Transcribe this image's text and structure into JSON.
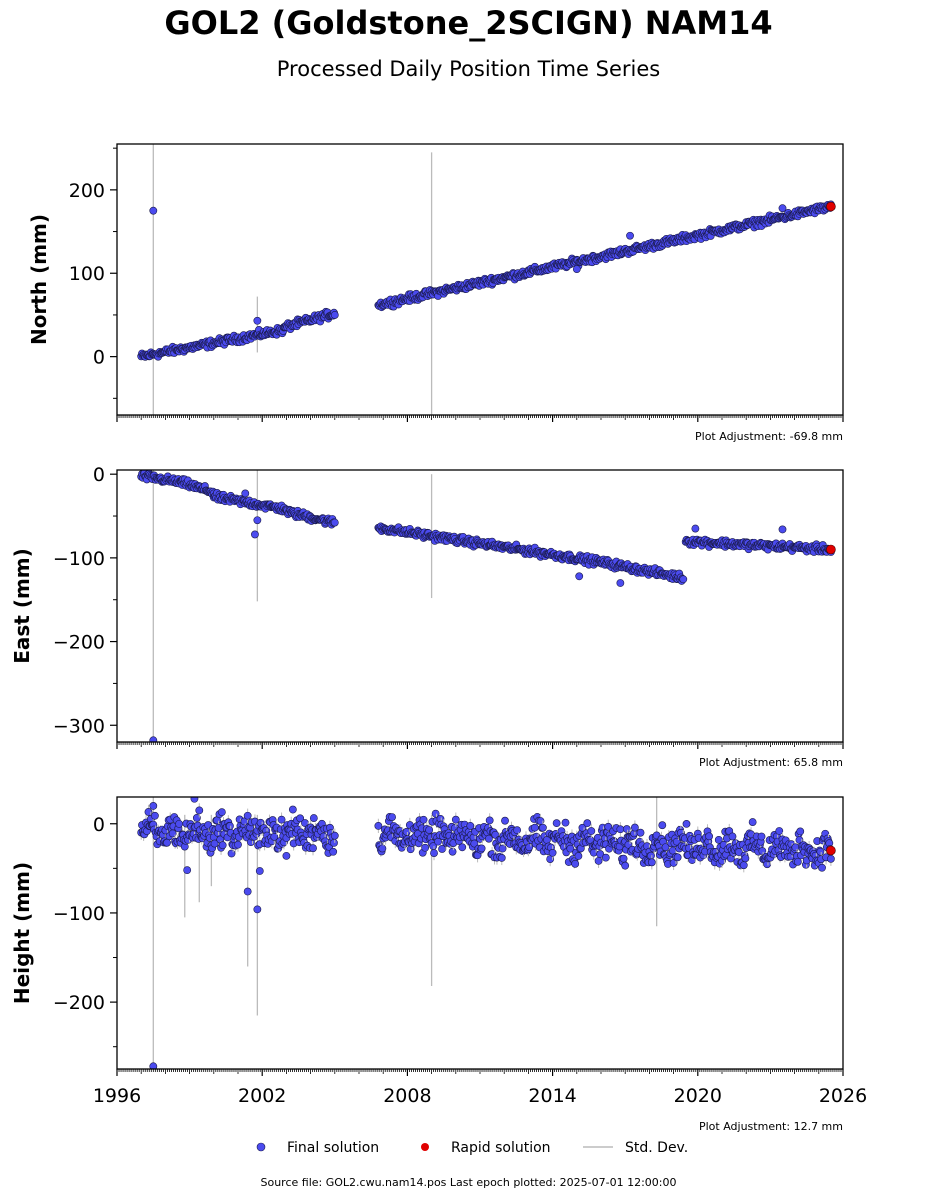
{
  "header": {
    "title": "GOL2 (Goldstone_2SCIGN) NAM14",
    "subtitle": "Processed Daily Position Time Series"
  },
  "footer": {
    "source": "Source file: GOL2.cwu.nam14.pos  Last epoch plotted: 2025-07-01 12:00:00"
  },
  "colors": {
    "final": "#4b4bef",
    "final_edge": "#1a1a4a",
    "rapid": "#e00000",
    "stddev": "#bbbbbb",
    "axis": "#000000"
  },
  "chart_data": [
    {
      "type": "scatter",
      "ylabel": "North (mm)",
      "xlim": [
        1996,
        2026
      ],
      "ylim": [
        -70,
        255
      ],
      "yticks": [
        0,
        100,
        200
      ],
      "plot_adjustment": "Plot Adjustment: -69.8 mm",
      "segments": [
        {
          "x0": 1997.0,
          "x1": 2002.9,
          "y0": 0,
          "y1": 32
        },
        {
          "x0": 2002.9,
          "x1": 2005.0,
          "y0": 35,
          "y1": 52
        },
        {
          "x0": 2006.8,
          "x1": 2025.5,
          "y0": 62,
          "y1": 180
        }
      ],
      "scatter_noise": 3,
      "outliers": [
        {
          "x": 1997.5,
          "y": 175
        },
        {
          "x": 2001.8,
          "y": 43
        },
        {
          "x": 2015.0,
          "y": 105
        },
        {
          "x": 2017.2,
          "y": 145
        },
        {
          "x": 2023.5,
          "y": 178
        }
      ],
      "stddev_bars": [
        {
          "x": 1997.5,
          "y0": -70,
          "y1": 255
        },
        {
          "x": 2001.8,
          "y0": 5,
          "y1": 72
        },
        {
          "x": 2009.0,
          "y0": -70,
          "y1": 245
        }
      ],
      "rapid": {
        "x": 2025.5,
        "y": 180
      }
    },
    {
      "type": "scatter",
      "ylabel": "East (mm)",
      "xlim": [
        1996,
        2026
      ],
      "ylim": [
        -320,
        5
      ],
      "yticks": [
        -300,
        -200,
        -100,
        0
      ],
      "plot_adjustment": "Plot Adjustment: 65.8 mm",
      "segments": [
        {
          "x0": 1997.0,
          "x1": 1998.7,
          "y0": -2,
          "y1": -10
        },
        {
          "x0": 1998.7,
          "x1": 2000.0,
          "y0": -10,
          "y1": -22
        },
        {
          "x0": 2000.0,
          "x1": 2003.0,
          "y0": -27,
          "y1": -42
        },
        {
          "x0": 2003.0,
          "x1": 2005.0,
          "y0": -45,
          "y1": -58
        },
        {
          "x0": 2006.8,
          "x1": 2016.0,
          "y0": -64,
          "y1": -105
        },
        {
          "x0": 2016.0,
          "x1": 2019.4,
          "y0": -105,
          "y1": -124
        },
        {
          "x0": 2019.5,
          "x1": 2025.5,
          "y0": -80,
          "y1": -90
        }
      ],
      "scatter_noise": 3,
      "outliers": [
        {
          "x": 1997.5,
          "y": -318
        },
        {
          "x": 2001.7,
          "y": -72
        },
        {
          "x": 2001.8,
          "y": -55
        },
        {
          "x": 2001.3,
          "y": -23
        },
        {
          "x": 2015.1,
          "y": -122
        },
        {
          "x": 2016.8,
          "y": -130
        },
        {
          "x": 2019.9,
          "y": -65
        },
        {
          "x": 2023.5,
          "y": -66
        }
      ],
      "stddev_bars": [
        {
          "x": 1997.5,
          "y0": -320,
          "y1": 5
        },
        {
          "x": 2001.8,
          "y0": -152,
          "y1": 5
        },
        {
          "x": 2009.0,
          "y0": -148,
          "y1": 0
        }
      ],
      "rapid": {
        "x": 2025.5,
        "y": -90
      }
    },
    {
      "type": "scatter",
      "ylabel": "Height (mm)",
      "xlim": [
        1996,
        2026
      ],
      "ylim": [
        -275,
        30
      ],
      "yticks": [
        -200,
        -100,
        0
      ],
      "xticks": [
        1996,
        2002,
        2008,
        2014,
        2020,
        2026
      ],
      "plot_adjustment": "Plot Adjustment: 12.7 mm",
      "segments": [
        {
          "x0": 1997.0,
          "x1": 2005.0,
          "y0": -10,
          "y1": -10
        },
        {
          "x0": 2006.8,
          "x1": 2025.5,
          "y0": -12,
          "y1": -30
        }
      ],
      "scatter_noise": 13,
      "outliers": [
        {
          "x": 1997.5,
          "y": 20
        },
        {
          "x": 1998.9,
          "y": -52
        },
        {
          "x": 1999.2,
          "y": 28
        },
        {
          "x": 2001.4,
          "y": -76
        },
        {
          "x": 2001.8,
          "y": -96
        },
        {
          "x": 2001.9,
          "y": -53
        },
        {
          "x": 2003.0,
          "y": -36
        },
        {
          "x": 1997.5,
          "y": -272
        },
        {
          "x": 2016.2,
          "y": -38
        },
        {
          "x": 2017.0,
          "y": -47
        }
      ],
      "stddev_bars": [
        {
          "x": 1997.5,
          "y0": -275,
          "y1": 30
        },
        {
          "x": 1998.8,
          "y0": -105,
          "y1": 10
        },
        {
          "x": 1999.4,
          "y0": -88,
          "y1": 10
        },
        {
          "x": 1999.9,
          "y0": -70,
          "y1": 10
        },
        {
          "x": 2001.4,
          "y0": -160,
          "y1": 10
        },
        {
          "x": 2001.8,
          "y0": -215,
          "y1": 10
        },
        {
          "x": 2009.0,
          "y0": -182,
          "y1": 10
        },
        {
          "x": 2018.3,
          "y0": -115,
          "y1": 30
        }
      ],
      "rapid": {
        "x": 2025.5,
        "y": -30
      }
    }
  ],
  "legend": {
    "final_label": "Final solution",
    "rapid_label": "Rapid solution",
    "std_label": "Std. Dev."
  }
}
